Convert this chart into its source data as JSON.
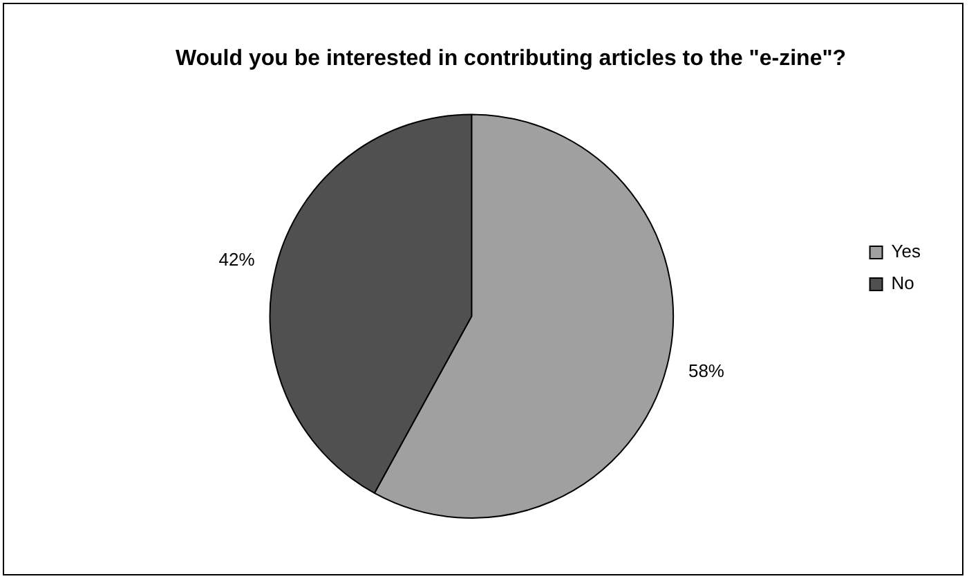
{
  "chart_data": {
    "type": "pie",
    "title": "Would you be interested in contributing articles to the \"e-zine\"?",
    "categories": [
      "Yes",
      "No"
    ],
    "values": [
      58,
      42
    ],
    "colors": [
      "#a0a0a0",
      "#505050"
    ],
    "value_labels": [
      "58%",
      "42%"
    ],
    "legend": "right"
  }
}
